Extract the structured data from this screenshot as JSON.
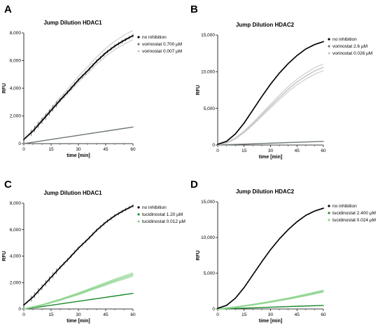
{
  "panel_letters": [
    "A",
    "B",
    "C",
    "D"
  ],
  "chart_data": [
    {
      "type": "line",
      "panel": "A",
      "title": "Jump Dilution HDAC1",
      "xlabel": "time [min]",
      "ylabel": "RFU",
      "xlim": [
        0,
        60
      ],
      "ylim": [
        0,
        8000
      ],
      "xticks": [
        0,
        15,
        30,
        45,
        60
      ],
      "yticks": [
        0,
        2000,
        4000,
        6000,
        8000
      ],
      "ytick_labels": [
        "0",
        "2,000",
        "4,000",
        "6,000",
        "8,000"
      ],
      "legend": "top-right",
      "series": [
        {
          "name": "no inhibition",
          "color": "#000000",
          "marker": "dot",
          "x": [
            0,
            5,
            10,
            15,
            20,
            25,
            30,
            35,
            40,
            45,
            50,
            55,
            60
          ],
          "y": [
            300,
            900,
            1650,
            2400,
            3150,
            3850,
            4600,
            5250,
            5950,
            6550,
            7050,
            7450,
            7800
          ]
        },
        {
          "name": "vorinostat 0.700 µM",
          "color": "#707a78",
          "marker": "dot",
          "x": [
            0,
            10,
            20,
            30,
            40,
            50,
            60
          ],
          "y": [
            0,
            200,
            400,
            600,
            800,
            1000,
            1200
          ]
        },
        {
          "name": "vorinostat 0.007 µM",
          "color": "#c8c8c8",
          "marker": "dot",
          "x": [
            0,
            5,
            10,
            15,
            20,
            25,
            30,
            35,
            40,
            45,
            50,
            55,
            60
          ],
          "y": [
            320,
            950,
            1700,
            2450,
            3200,
            3900,
            4650,
            5300,
            6000,
            6600,
            7100,
            7500,
            7850
          ]
        }
      ]
    },
    {
      "type": "line",
      "panel": "B",
      "title": "Jump Dilution HDAC2",
      "xlabel": "time [min]",
      "ylabel": "RFU",
      "xlim": [
        0,
        60
      ],
      "ylim": [
        0,
        15000
      ],
      "xticks": [
        0,
        15,
        30,
        45,
        60
      ],
      "yticks": [
        0,
        5000,
        10000,
        15000
      ],
      "ytick_labels": [
        "0",
        "5,000",
        "10,000",
        "15,000"
      ],
      "legend": "top-right",
      "series": [
        {
          "name": "no inhibition",
          "color": "#000000",
          "marker": "dot",
          "x": [
            0,
            5,
            10,
            15,
            20,
            25,
            30,
            35,
            40,
            45,
            50,
            55,
            60
          ],
          "y": [
            100,
            500,
            1500,
            3000,
            4800,
            6600,
            8300,
            9800,
            11100,
            12200,
            13100,
            13700,
            14100
          ]
        },
        {
          "name": "vorinostat 2.6 µM",
          "color": "#707a78",
          "marker": "dot",
          "x": [
            0,
            15,
            30,
            45,
            60
          ],
          "y": [
            0,
            120,
            250,
            380,
            500
          ]
        },
        {
          "name": "vorinostat 0.026 µM",
          "color": "#c8c8c8",
          "marker": "dot",
          "x": [
            0,
            5,
            10,
            15,
            20,
            25,
            30,
            35,
            40,
            45,
            50,
            55,
            60
          ],
          "y": [
            50,
            300,
            900,
            1800,
            2900,
            4100,
            5300,
            6500,
            7600,
            8600,
            9400,
            10100,
            10600
          ]
        }
      ]
    },
    {
      "type": "line",
      "panel": "C",
      "title": "Jump Dilution HDAC1",
      "xlabel": "time [min]",
      "ylabel": "RFU",
      "xlim": [
        0,
        60
      ],
      "ylim": [
        0,
        8000
      ],
      "xticks": [
        0,
        15,
        30,
        45,
        60
      ],
      "yticks": [
        0,
        2000,
        4000,
        6000,
        8000
      ],
      "ytick_labels": [
        "0",
        "2,000",
        "4,000",
        "6,000",
        "8,000"
      ],
      "legend": "top-right",
      "series": [
        {
          "name": "no inhibition",
          "color": "#000000",
          "marker": "dot",
          "x": [
            0,
            5,
            10,
            15,
            20,
            25,
            30,
            35,
            40,
            45,
            50,
            55,
            60
          ],
          "y": [
            300,
            900,
            1650,
            2400,
            3150,
            3850,
            4600,
            5250,
            5950,
            6550,
            7050,
            7450,
            7800
          ]
        },
        {
          "name": "tucidinostat 1.20 µM",
          "color": "#1e8a2e",
          "marker": "dot",
          "x": [
            0,
            10,
            20,
            30,
            40,
            50,
            60
          ],
          "y": [
            0,
            180,
            380,
            580,
            780,
            980,
            1180
          ]
        },
        {
          "name": "tucidinostat 0.012 µM",
          "color": "#8fd48f",
          "marker": "dot",
          "x": [
            0,
            10,
            20,
            30,
            40,
            50,
            60
          ],
          "y": [
            0,
            300,
            700,
            1150,
            1650,
            2150,
            2600
          ]
        }
      ]
    },
    {
      "type": "line",
      "panel": "D",
      "title": "Jump Dilution HDAC2",
      "xlabel": "time [min]",
      "ylabel": "RFU",
      "xlim": [
        0,
        60
      ],
      "ylim": [
        0,
        15000
      ],
      "xticks": [
        0,
        15,
        30,
        45,
        60
      ],
      "yticks": [
        0,
        5000,
        10000,
        15000
      ],
      "ytick_labels": [
        "0",
        "5,000",
        "10,000",
        "15,000"
      ],
      "legend": "top-right",
      "series": [
        {
          "name": "no inhibition",
          "color": "#000000",
          "marker": "dot",
          "x": [
            0,
            5,
            10,
            15,
            20,
            25,
            30,
            35,
            40,
            45,
            50,
            55,
            60
          ],
          "y": [
            100,
            500,
            1500,
            3000,
            4800,
            6600,
            8300,
            9800,
            11100,
            12200,
            13100,
            13700,
            14100
          ]
        },
        {
          "name": "tucidinostat 2.400 µM",
          "color": "#1e8a2e",
          "marker": "dot",
          "x": [
            0,
            15,
            30,
            45,
            60
          ],
          "y": [
            0,
            120,
            250,
            380,
            500
          ]
        },
        {
          "name": "tucidinostat 0.024 µM",
          "color": "#8fd48f",
          "marker": "dot",
          "x": [
            0,
            10,
            20,
            30,
            40,
            50,
            60
          ],
          "y": [
            0,
            250,
            600,
            1000,
            1450,
            1950,
            2500
          ]
        }
      ]
    }
  ]
}
